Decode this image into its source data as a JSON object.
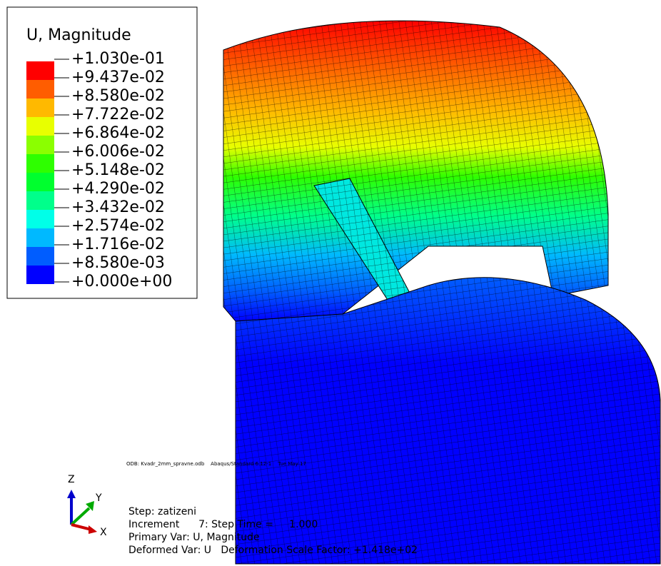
{
  "legend": {
    "title": "U, Magnitude",
    "labels": [
      "+1.030e-01",
      "+9.437e-02",
      "+8.580e-02",
      "+7.722e-02",
      "+6.864e-02",
      "+6.006e-02",
      "+5.148e-02",
      "+4.290e-02",
      "+3.432e-02",
      "+2.574e-02",
      "+1.716e-02",
      "+8.580e-03",
      "+0.000e+00"
    ],
    "colors": [
      "#ff0000",
      "#ff5d00",
      "#ffb900",
      "#e8ff00",
      "#8bff00",
      "#2eff00",
      "#00ff2e",
      "#00ff8b",
      "#00ffe8",
      "#00b9ff",
      "#005dff",
      "#0000ff"
    ]
  },
  "odb_line": "ODB: Kvadr_2mm_spravne.odb    Abaqus/Standard 6.12-1    Tue May 17",
  "triad": {
    "z": "Z",
    "y": "Y",
    "x": "X"
  },
  "info": {
    "step": "Step: zatizeni",
    "increment": "Increment      7: Step Time =     1.000",
    "primary": "Primary Var: U, Magnitude",
    "deformed": "Deformed Var: U   Deformation Scale Factor: +1.418e+02"
  }
}
